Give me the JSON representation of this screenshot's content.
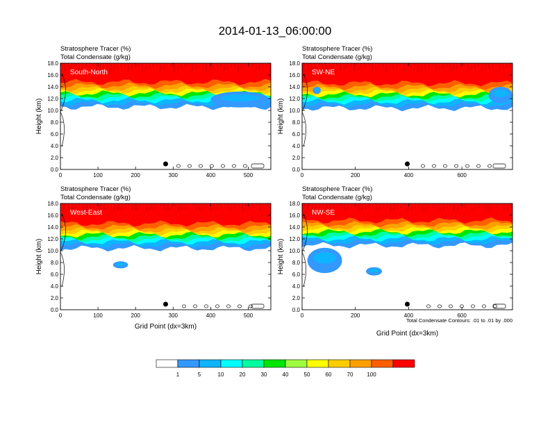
{
  "figure": {
    "title": "2014-01-13_06:00:00",
    "footnote": "Total Condensate Contours: .01 to .01 by .000"
  },
  "colorbar": {
    "colors": [
      "#ffffff",
      "#3399ff",
      "#0fb4ff",
      "#00ffff",
      "#00ffa0",
      "#00e600",
      "#a0ff40",
      "#ffff00",
      "#ffcd00",
      "#ffa000",
      "#ff5f00",
      "#ff0000"
    ],
    "labels": [
      "1",
      "5",
      "10",
      "20",
      "30",
      "40",
      "50",
      "60",
      "70",
      "100"
    ]
  },
  "chart_data": [
    {
      "type": "heatmap",
      "panel_label": "South-North",
      "subtitle_left_1": "Stratosphere Tracer",
      "subtitle_unit_1": "(%)",
      "subtitle_left_2": "Total Condensate",
      "subtitle_unit_2": "(g/kg)",
      "ylabel": "Height (km)",
      "xlabel": "",
      "xlim": [
        0,
        560
      ],
      "ylim": [
        0,
        18
      ],
      "xticks": [
        0,
        100,
        200,
        300,
        400,
        500
      ],
      "yticks": [
        "0.0",
        "2.0",
        "4.0",
        "6.0",
        "8.0",
        "10.0",
        "12.0",
        "14.0",
        "16.0",
        "18.0"
      ],
      "marker_x": 280,
      "contour_top_km": 16.2,
      "cloud_blobs": [
        {
          "x0": 400,
          "x1": 555,
          "y0": 10.5,
          "y1": 13.2
        }
      ]
    },
    {
      "type": "heatmap",
      "panel_label": "SW-NE",
      "subtitle_left_1": "Stratosphere Tracer",
      "subtitle_unit_1": "(%)",
      "subtitle_left_2": "Total Condensate",
      "subtitle_unit_2": "(g/kg)",
      "ylabel": "Height (km)",
      "xlabel": "",
      "xlim": [
        0,
        790
      ],
      "ylim": [
        0,
        18
      ],
      "xticks": [
        0,
        200,
        400,
        600
      ],
      "yticks": [
        "0.0",
        "2.0",
        "4.0",
        "6.0",
        "8.0",
        "10.0",
        "12.0",
        "14.0",
        "16.0",
        "18.0"
      ],
      "marker_x": 395,
      "contour_top_km": 16.0,
      "cloud_blobs": [
        {
          "x0": 700,
          "x1": 790,
          "y0": 11.2,
          "y1": 14.0
        },
        {
          "x0": 40,
          "x1": 70,
          "y0": 12.8,
          "y1": 14.0
        }
      ]
    },
    {
      "type": "heatmap",
      "panel_label": "West-East",
      "subtitle_left_1": "Stratosphere Tracer",
      "subtitle_unit_1": "(%)",
      "subtitle_left_2": "Total Condensate",
      "subtitle_unit_2": "(g/kg)",
      "ylabel": "Height (km)",
      "xlabel": "Grid Point (dx=3km)",
      "xlim": [
        0,
        560
      ],
      "ylim": [
        0,
        18
      ],
      "xticks": [
        0,
        100,
        200,
        300,
        400,
        500
      ],
      "yticks": [
        "0.0",
        "2.0",
        "4.0",
        "6.0",
        "8.0",
        "10.0",
        "12.0",
        "14.0",
        "16.0",
        "18.0"
      ],
      "marker_x": 280,
      "contour_top_km": 16.0,
      "cloud_blobs": [
        {
          "x0": 140,
          "x1": 180,
          "y0": 7.0,
          "y1": 8.2
        }
      ]
    },
    {
      "type": "heatmap",
      "panel_label": "NW-SE",
      "subtitle_left_1": "Stratosphere Tracer",
      "subtitle_unit_1": "(%)",
      "subtitle_left_2": "Total Condensate",
      "subtitle_unit_2": "(g/kg)",
      "ylabel": "Height (km)",
      "xlabel": "Grid Point (dx=3km)",
      "xlim": [
        0,
        790
      ],
      "ylim": [
        0,
        18
      ],
      "xticks": [
        0,
        200,
        400,
        600
      ],
      "yticks": [
        "0.0",
        "2.0",
        "4.0",
        "6.0",
        "8.0",
        "10.0",
        "12.0",
        "14.0",
        "16.0",
        "18.0"
      ],
      "marker_x": 395,
      "contour_top_km": 16.5,
      "cloud_blobs": [
        {
          "x0": 240,
          "x1": 300,
          "y0": 5.8,
          "y1": 7.2
        },
        {
          "x0": 20,
          "x1": 150,
          "y0": 6.2,
          "y1": 10.5
        }
      ]
    }
  ]
}
